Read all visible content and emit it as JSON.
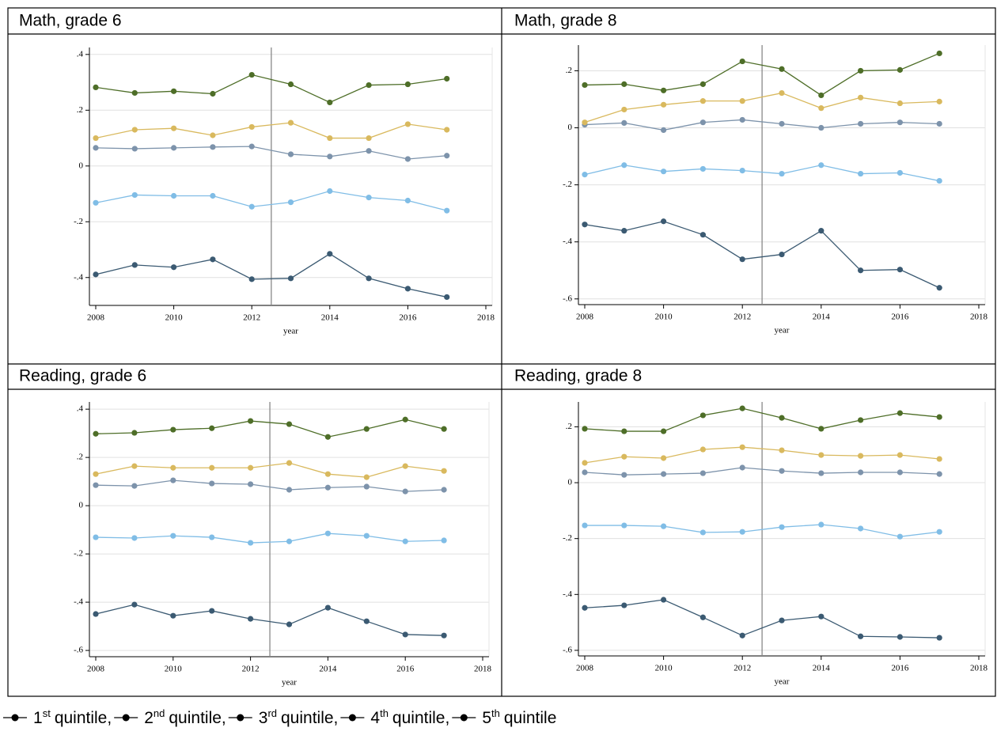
{
  "chart_data": [
    {
      "type": "line",
      "title": "Math, grade 6",
      "x_label": "year",
      "x": [
        2008,
        2009,
        2010,
        2011,
        2012,
        2013,
        2014,
        2015,
        2016,
        2017
      ],
      "xlim": [
        2008,
        2018
      ],
      "xticks": [
        2008,
        2010,
        2012,
        2014,
        2016,
        2018
      ],
      "ylim": [
        -0.5,
        0.425
      ],
      "yticks": [
        {
          "value": -0.4,
          "label": "-.4"
        },
        {
          "value": -0.2,
          "label": "-.2"
        },
        0,
        {
          "value": 0.2,
          "label": ".2"
        },
        {
          "value": 0.4,
          "label": ".4"
        }
      ],
      "grid": true,
      "vline": 2012.5,
      "series": [
        {
          "color": "#3b5a72",
          "values": [
            -0.389,
            -0.355,
            -0.363,
            -0.335,
            -0.406,
            -0.403,
            -0.315,
            -0.403,
            -0.44,
            -0.47
          ]
        },
        {
          "color": "#80bde6",
          "values": [
            -0.132,
            -0.104,
            -0.107,
            -0.107,
            -0.146,
            -0.13,
            -0.09,
            -0.113,
            -0.124,
            -0.16
          ]
        },
        {
          "color": "#7d93ab",
          "values": [
            0.065,
            0.062,
            0.065,
            0.068,
            0.07,
            0.042,
            0.034,
            0.054,
            0.025,
            0.037
          ]
        },
        {
          "color": "#d9b95e",
          "values": [
            0.1,
            0.13,
            0.135,
            0.11,
            0.14,
            0.155,
            0.1,
            0.1,
            0.15,
            0.13
          ]
        },
        {
          "color": "#4e6e28",
          "values": [
            0.282,
            0.262,
            0.268,
            0.259,
            0.327,
            0.293,
            0.228,
            0.29,
            0.293,
            0.313
          ]
        }
      ]
    },
    {
      "type": "line",
      "title": "Math, grade 8",
      "x_label": "year",
      "x": [
        2008,
        2009,
        2010,
        2011,
        2012,
        2013,
        2014,
        2015,
        2016,
        2017
      ],
      "xlim": [
        2008,
        2018
      ],
      "xticks": [
        2008,
        2010,
        2012,
        2014,
        2016,
        2018
      ],
      "ylim": [
        -0.62,
        0.29
      ],
      "yticks": [
        {
          "value": -0.6,
          "label": "-.6"
        },
        {
          "value": -0.4,
          "label": "-.4"
        },
        {
          "value": -0.2,
          "label": "-.2"
        },
        0,
        {
          "value": 0.2,
          "label": ".2"
        }
      ],
      "grid": true,
      "vline": 2012.5,
      "series": [
        {
          "color": "#3b5a72",
          "values": [
            -0.339,
            -0.361,
            -0.328,
            -0.375,
            -0.461,
            -0.444,
            -0.361,
            -0.5,
            -0.497,
            -0.561
          ]
        },
        {
          "color": "#80bde6",
          "values": [
            -0.164,
            -0.131,
            -0.153,
            -0.144,
            -0.15,
            -0.161,
            -0.131,
            -0.161,
            -0.158,
            -0.186
          ]
        },
        {
          "color": "#7d93ab",
          "values": [
            0.011,
            0.017,
            -0.008,
            0.019,
            0.028,
            0.014,
            0,
            0.014,
            0.019,
            0.014
          ]
        },
        {
          "color": "#d9b95e",
          "values": [
            0.019,
            0.064,
            0.081,
            0.094,
            0.094,
            0.122,
            0.069,
            0.106,
            0.086,
            0.092
          ]
        },
        {
          "color": "#4e6e28",
          "values": [
            0.15,
            0.153,
            0.131,
            0.153,
            0.233,
            0.206,
            0.114,
            0.2,
            0.203,
            0.261
          ]
        }
      ]
    },
    {
      "type": "line",
      "title": "Reading, grade 6",
      "x_label": "year",
      "x": [
        2008,
        2009,
        2010,
        2011,
        2012,
        2013,
        2014,
        2015,
        2016,
        2017
      ],
      "xlim": [
        2008,
        2018
      ],
      "xticks": [
        2008,
        2010,
        2012,
        2014,
        2016,
        2018
      ],
      "ylim": [
        -0.626,
        0.43
      ],
      "yticks": [
        {
          "value": -0.6,
          "label": "-.6"
        },
        {
          "value": -0.4,
          "label": "-.4"
        },
        {
          "value": -0.2,
          "label": "-.2"
        },
        0,
        {
          "value": 0.2,
          "label": ".2"
        },
        {
          "value": 0.4,
          "label": ".4"
        }
      ],
      "grid": true,
      "vline": 2012.5,
      "series": [
        {
          "color": "#3b5a72",
          "values": [
            -0.449,
            -0.41,
            -0.456,
            -0.436,
            -0.469,
            -0.492,
            -0.423,
            -0.479,
            -0.534,
            -0.538
          ]
        },
        {
          "color": "#80bde6",
          "values": [
            -0.131,
            -0.134,
            -0.125,
            -0.131,
            -0.154,
            -0.148,
            -0.115,
            -0.125,
            -0.148,
            -0.144
          ]
        },
        {
          "color": "#7d93ab",
          "values": [
            0.085,
            0.082,
            0.105,
            0.092,
            0.089,
            0.066,
            0.075,
            0.079,
            0.059,
            0.066
          ]
        },
        {
          "color": "#d9b95e",
          "values": [
            0.131,
            0.164,
            0.157,
            0.157,
            0.157,
            0.177,
            0.131,
            0.118,
            0.164,
            0.144
          ]
        },
        {
          "color": "#4e6e28",
          "values": [
            0.298,
            0.302,
            0.315,
            0.321,
            0.351,
            0.338,
            0.285,
            0.318,
            0.357,
            0.318
          ]
        }
      ]
    },
    {
      "type": "line",
      "title": "Reading, grade 8",
      "x_label": "year",
      "x": [
        2008,
        2009,
        2010,
        2011,
        2012,
        2013,
        2014,
        2015,
        2016,
        2017
      ],
      "xlim": [
        2008,
        2018
      ],
      "xticks": [
        2008,
        2010,
        2012,
        2014,
        2016,
        2018
      ],
      "ylim": [
        -0.62,
        0.289
      ],
      "yticks": [
        {
          "value": -0.6,
          "label": "-.6"
        },
        {
          "value": -0.4,
          "label": "-.4"
        },
        {
          "value": -0.2,
          "label": "-.2"
        },
        0,
        {
          "value": 0.2,
          "label": ".2"
        }
      ],
      "grid": true,
      "vline": 2012.5,
      "series": [
        {
          "color": "#3b5a72",
          "values": [
            -0.448,
            -0.439,
            -0.419,
            -0.482,
            -0.547,
            -0.493,
            -0.479,
            -0.55,
            -0.552,
            -0.555
          ]
        },
        {
          "color": "#80bde6",
          "values": [
            -0.153,
            -0.153,
            -0.156,
            -0.178,
            -0.176,
            -0.159,
            -0.15,
            -0.164,
            -0.193,
            -0.176
          ]
        },
        {
          "color": "#7d93ab",
          "values": [
            0.037,
            0.028,
            0.031,
            0.034,
            0.054,
            0.042,
            0.034,
            0.037,
            0.037,
            0.031
          ]
        },
        {
          "color": "#d9b95e",
          "values": [
            0.071,
            0.093,
            0.088,
            0.119,
            0.127,
            0.116,
            0.099,
            0.096,
            0.099,
            0.085
          ]
        },
        {
          "color": "#4e6e28",
          "values": [
            0.193,
            0.184,
            0.184,
            0.241,
            0.266,
            0.232,
            0.193,
            0.224,
            0.249,
            0.235
          ]
        }
      ]
    }
  ],
  "legend": {
    "items": [
      {
        "ordinal": "1",
        "suffix": "st",
        "text": "quintile,"
      },
      {
        "ordinal": "2",
        "suffix": "nd",
        "text": "quintile,"
      },
      {
        "ordinal": "3",
        "suffix": "rd",
        "text": "quintile,"
      },
      {
        "ordinal": "4",
        "suffix": "th",
        "text": "quintile,"
      },
      {
        "ordinal": "5",
        "suffix": "th",
        "text": "quintile"
      }
    ]
  }
}
